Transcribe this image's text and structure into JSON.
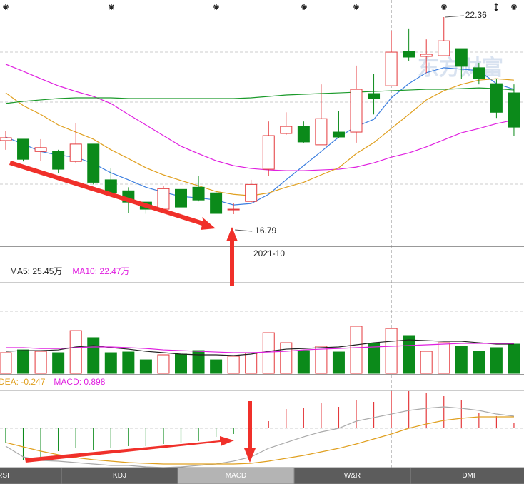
{
  "chart_data": [
    {
      "type": "candlestick",
      "x_label": "2021-10",
      "watermark": "东方财富",
      "up_color": "#e4393c",
      "down_color": "#0b8a1a",
      "candles": [
        {
          "open": 18.87,
          "high": 19.15,
          "low": 18.61,
          "close": 18.95
        },
        {
          "open": 18.91,
          "high": 18.91,
          "low": 18.28,
          "close": 18.34
        },
        {
          "open": 18.56,
          "high": 18.91,
          "low": 18.3,
          "close": 18.67
        },
        {
          "open": 18.56,
          "high": 18.61,
          "low": 17.94,
          "close": 18.06
        },
        {
          "open": 18.28,
          "high": 19.37,
          "low": 18.24,
          "close": 18.77
        },
        {
          "open": 18.77,
          "high": 18.77,
          "low": 17.63,
          "close": 17.69
        },
        {
          "open": 17.76,
          "high": 18.1,
          "low": 17.35,
          "close": 17.39
        },
        {
          "open": 17.45,
          "high": 17.55,
          "low": 16.82,
          "close": 17.13
        },
        {
          "open": 17.13,
          "high": 17.13,
          "low": 16.8,
          "close": 16.93
        },
        {
          "open": 16.93,
          "high": 17.59,
          "low": 16.89,
          "close": 17.51
        },
        {
          "open": 17.49,
          "high": 17.92,
          "low": 16.95,
          "close": 16.99
        },
        {
          "open": 17.55,
          "high": 17.86,
          "low": 17.15,
          "close": 17.19
        },
        {
          "open": 17.39,
          "high": 17.43,
          "low": 16.8,
          "close": 16.81
        },
        {
          "open": 16.91,
          "high": 17.11,
          "low": 16.79,
          "close": 16.93
        },
        {
          "open": 17.15,
          "high": 17.76,
          "low": 17.11,
          "close": 17.63
        },
        {
          "open": 18.06,
          "high": 19.41,
          "low": 17.88,
          "close": 19.01
        },
        {
          "open": 19.07,
          "high": 19.67,
          "low": 19.03,
          "close": 19.27
        },
        {
          "open": 19.27,
          "high": 19.41,
          "low": 18.81,
          "close": 18.83
        },
        {
          "open": 18.75,
          "high": 20.46,
          "low": 18.75,
          "close": 19.49
        },
        {
          "open": 19.11,
          "high": 19.71,
          "low": 18.95,
          "close": 18.97
        },
        {
          "open": 19.11,
          "high": 20.99,
          "low": 18.81,
          "close": 20.32
        },
        {
          "open": 20.2,
          "high": 20.76,
          "low": 19.61,
          "close": 20.06
        },
        {
          "open": 20.42,
          "high": 21.98,
          "low": 20.42,
          "close": 21.37
        },
        {
          "open": 21.39,
          "high": 22.04,
          "low": 21.13,
          "close": 21.23
        },
        {
          "open": 21.25,
          "high": 21.73,
          "low": 20.78,
          "close": 21.31
        },
        {
          "open": 21.27,
          "high": 22.36,
          "low": 21.27,
          "close": 21.69
        },
        {
          "open": 21.47,
          "high": 21.47,
          "low": 20.62,
          "close": 20.97
        },
        {
          "open": 20.93,
          "high": 21.07,
          "low": 20.46,
          "close": 20.62
        },
        {
          "open": 20.48,
          "high": 20.62,
          "low": 19.51,
          "close": 19.67
        },
        {
          "open": 20.22,
          "high": 20.46,
          "low": 19.01,
          "close": 19.25
        }
      ],
      "series": [
        {
          "color": "#3d7fe0",
          "values": [
            18.97,
            18.77,
            18.56,
            18.46,
            18.4,
            18.22,
            17.96,
            17.76,
            17.55,
            17.41,
            17.29,
            17.25,
            17.19,
            17.05,
            17.09,
            17.35,
            17.76,
            18.16,
            18.56,
            18.97,
            19.27,
            19.47,
            20.08,
            20.48,
            20.79,
            20.93,
            20.89,
            20.85,
            20.48,
            20.32
          ]
        },
        {
          "color": "#e020e0",
          "values": [
            21.03,
            20.83,
            20.62,
            20.42,
            20.26,
            20.12,
            19.92,
            19.61,
            19.31,
            19.01,
            18.71,
            18.5,
            18.3,
            18.16,
            18.08,
            18.04,
            18.02,
            18.02,
            18.04,
            18.06,
            18.12,
            18.24,
            18.4,
            18.52,
            18.69,
            18.89,
            19.09,
            19.21,
            19.35,
            19.45
          ]
        },
        {
          "color": "#e0a020",
          "values": [
            20.22,
            19.86,
            19.61,
            19.31,
            19.11,
            18.91,
            18.61,
            18.36,
            18.1,
            17.9,
            17.74,
            17.59,
            17.43,
            17.35,
            17.31,
            17.39,
            17.55,
            17.69,
            17.9,
            18.1,
            18.5,
            18.81,
            19.21,
            19.61,
            20.02,
            20.28,
            20.46,
            20.58,
            20.62,
            20.58
          ]
        },
        {
          "color": "#1a9a2a",
          "values": [
            19.92,
            19.98,
            20.02,
            20.06,
            20.08,
            20.08,
            20.08,
            20.06,
            20.06,
            20.06,
            20.06,
            20.06,
            20.06,
            20.06,
            20.08,
            20.12,
            20.16,
            20.18,
            20.2,
            20.22,
            20.24,
            20.26,
            20.28,
            20.3,
            20.32,
            20.32,
            20.34,
            20.36,
            20.34,
            20.3
          ]
        }
      ]
    },
    {
      "type": "volume",
      "values": [
        20.5,
        23.3,
        21.9,
        20.5,
        42.4,
        35.4,
        20.5,
        21.2,
        13.4,
        18.4,
        19.1,
        22.6,
        13.4,
        17.0,
        20.5,
        40.3,
        30.4,
        22.6,
        26.9,
        21.2,
        46.7,
        29.7,
        44.5,
        37.5,
        21.9,
        30.4,
        26.9,
        21.9,
        25.5,
        29.0
      ],
      "series": [
        {
          "name": "MA5: 25.45万",
          "color": "#222222",
          "values": [
            21.9,
            22.6,
            22.6,
            23.3,
            26.2,
            27.6,
            25.5,
            24.0,
            21.9,
            20.5,
            19.1,
            18.4,
            18.4,
            17.7,
            19.1,
            21.9,
            24.0,
            24.7,
            25.5,
            26.2,
            28.3,
            30.4,
            31.8,
            33.2,
            32.5,
            31.8,
            31.8,
            30.4,
            29.0,
            29.0
          ]
        },
        {
          "name": "MA10: 22.47万",
          "color": "#e020e0",
          "values": [
            25.5,
            25.5,
            24.7,
            24.7,
            25.5,
            26.2,
            26.2,
            25.5,
            24.7,
            23.3,
            22.6,
            21.9,
            21.2,
            20.5,
            20.5,
            21.2,
            21.9,
            23.3,
            24.0,
            24.7,
            25.5,
            26.2,
            26.9,
            27.6,
            28.3,
            29.0,
            29.7,
            29.7,
            29.7,
            29.7
          ]
        }
      ]
    },
    {
      "type": "macd",
      "values": [
        -0.345,
        -0.777,
        -0.691,
        -0.553,
        -0.484,
        -0.518,
        -0.484,
        -0.432,
        -0.432,
        -0.38,
        -0.345,
        -0.311,
        -0.207,
        -0.138,
        0.035,
        0.173,
        0.466,
        0.484,
        0.604,
        0.518,
        0.691,
        0.639,
        0.898,
        0.898,
        0.864,
        0.777,
        0.691,
        0.38,
        0.294,
        0.121
      ],
      "value_name": "MACD: 0.898",
      "series": [
        {
          "color": "#aaaaaa",
          "values": [
            -0.432,
            -0.691,
            -0.777,
            -0.794,
            -0.829,
            -0.864,
            -0.898,
            -0.898,
            -0.933,
            -0.95,
            -0.933,
            -0.898,
            -0.864,
            -0.794,
            -0.691,
            -0.484,
            -0.345,
            -0.207,
            -0.086,
            0,
            0.173,
            0.259,
            0.345,
            0.432,
            0.484,
            0.518,
            0.484,
            0.432,
            0.345,
            0.294
          ]
        },
        {
          "name": "DEA: -0.247",
          "color": "#e0a020",
          "values": [
            -0.345,
            -0.449,
            -0.553,
            -0.639,
            -0.708,
            -0.76,
            -0.794,
            -0.829,
            -0.846,
            -0.864,
            -0.864,
            -0.864,
            -0.864,
            -0.864,
            -0.846,
            -0.794,
            -0.725,
            -0.656,
            -0.57,
            -0.484,
            -0.38,
            -0.259,
            -0.138,
            0,
            0.104,
            0.19,
            0.242,
            0.276,
            0.276,
            0.276
          ]
        }
      ]
    }
  ],
  "tabs": [
    "RSI",
    "KDJ",
    "MACD",
    "W&R",
    "DMI"
  ],
  "active_tab": 2
}
